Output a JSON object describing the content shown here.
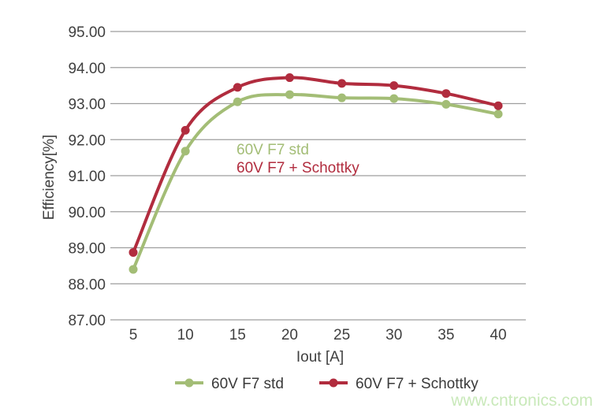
{
  "watermark": {
    "text": "www.cntronics.com",
    "color": "#c9e9ba"
  },
  "axis_style": {
    "grid_color": "#9e9e9e",
    "tick_label_color": "#3f3f3f",
    "axis_title_color": "#3f3f3f",
    "legend_text_color": "#3a3a3a"
  },
  "chart_data": {
    "type": "line",
    "title": "",
    "xlabel": "Iout [A]",
    "ylabel": "Efficiency[%]",
    "x": [
      5,
      10,
      15,
      20,
      25,
      30,
      35,
      40
    ],
    "xtick_labels": [
      "5",
      "10",
      "15",
      "20",
      "25",
      "30",
      "35",
      "40"
    ],
    "ytick_labels": [
      "95.00",
      "94.00",
      "93.00",
      "92.00",
      "91.00",
      "90.00",
      "89.00",
      "88.00",
      "87.00"
    ],
    "yticks": [
      95,
      94,
      93,
      92,
      91,
      90,
      89,
      88,
      87
    ],
    "xlim": [
      5,
      40
    ],
    "ylim": [
      87,
      95
    ],
    "grid": "horizontal",
    "legend_position": "bottom",
    "series": [
      {
        "name": "60V F7 std",
        "color": "#a3bd76",
        "values": [
          88.4,
          91.68,
          93.05,
          93.25,
          93.16,
          93.14,
          92.98,
          92.71
        ]
      },
      {
        "name": "60V F7 + Schottky",
        "color": "#b12c3e",
        "values": [
          88.87,
          92.26,
          93.45,
          93.72,
          93.56,
          93.5,
          93.28,
          92.94
        ]
      }
    ],
    "annotations": [
      {
        "text": "60V F7 std",
        "series": 0
      },
      {
        "text": "60V F7 + Schottky",
        "series": 1
      }
    ]
  }
}
